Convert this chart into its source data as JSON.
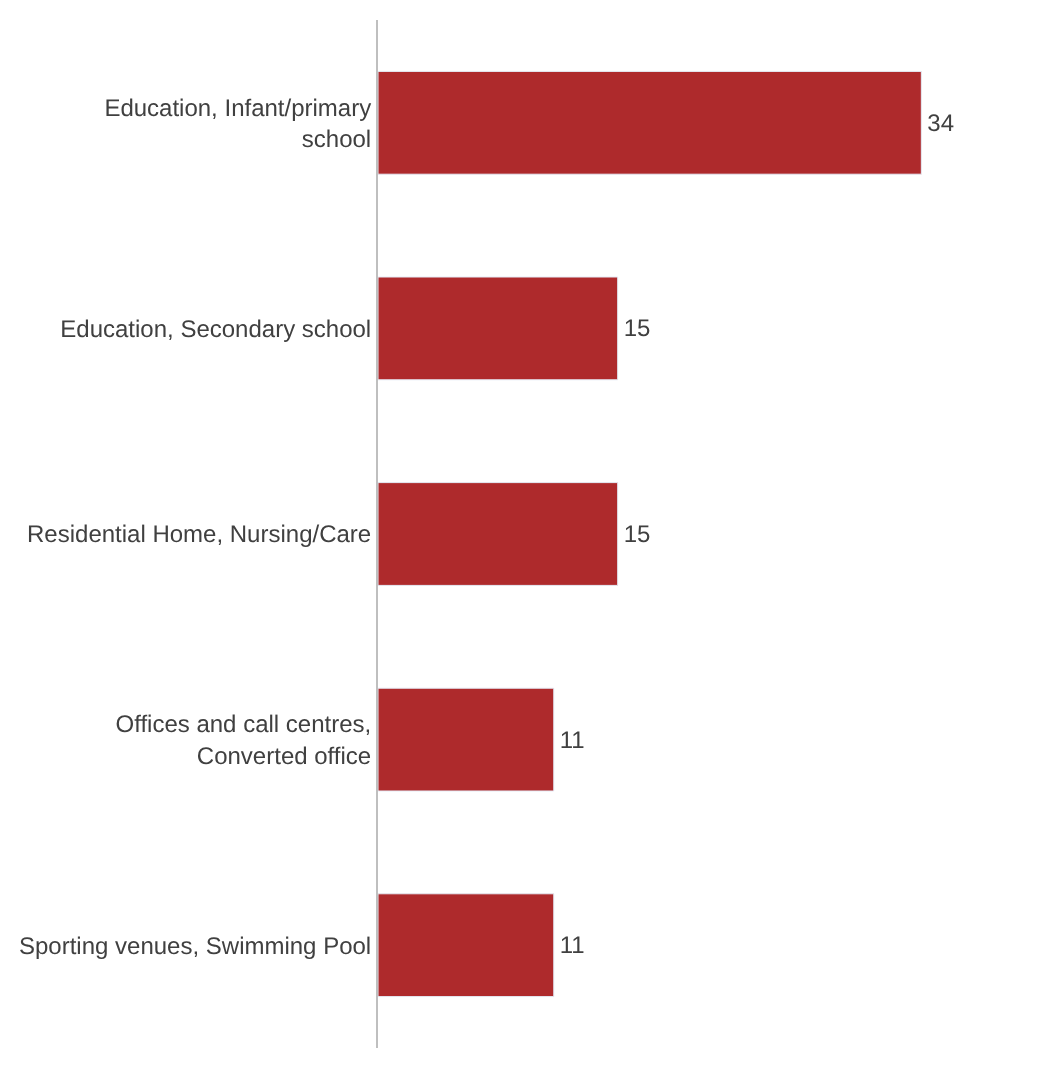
{
  "chart_data": {
    "type": "bar",
    "orientation": "horizontal",
    "categories": [
      "Education, Infant/primary school",
      "Education, Secondary school",
      "Residential Home, Nursing/Care",
      "Offices and call centres, Converted office",
      "Sporting venues, Swimming Pool"
    ],
    "values": [
      34,
      15,
      15,
      11,
      11
    ],
    "color": "#ae2a2c",
    "data_labels": true,
    "legend": false
  }
}
